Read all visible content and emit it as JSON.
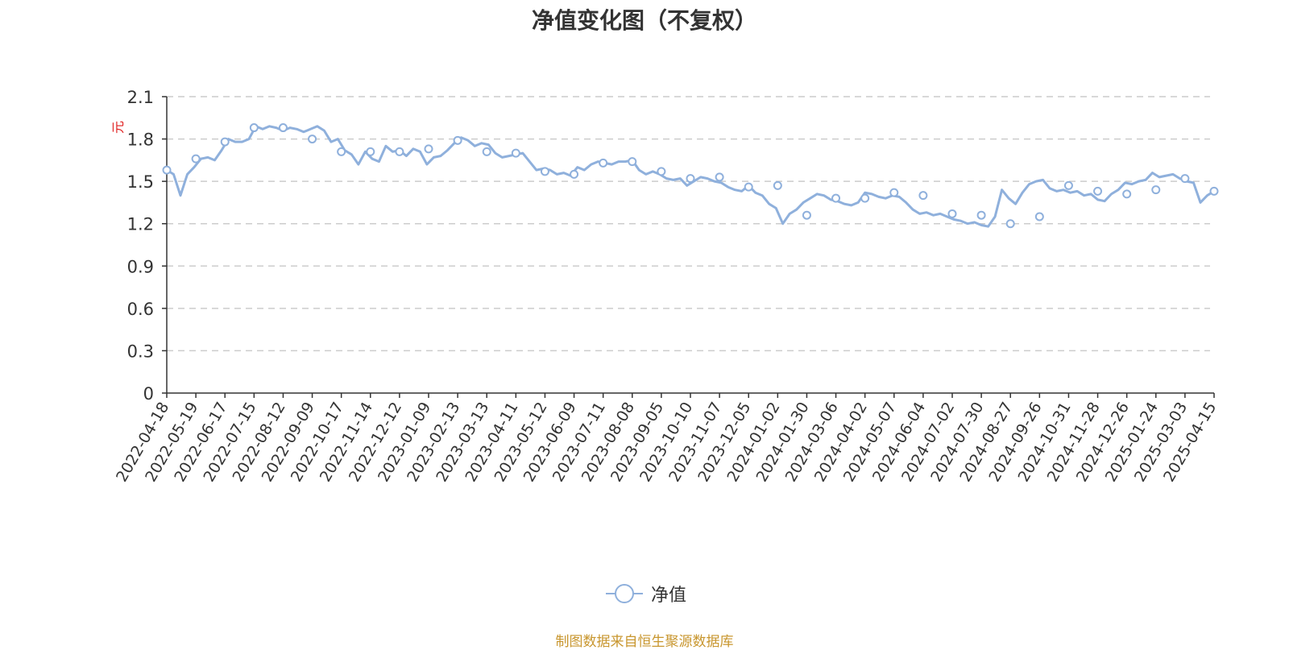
{
  "title": "净值变化图（不复权）",
  "unit": "元",
  "legend": {
    "label": "净值"
  },
  "source": "制图数据来自恒生聚源数据库",
  "colors": {
    "line": "#8fb0dc",
    "marker_fill": "#ffffff",
    "grid": "#cccccc",
    "unit": "#e02020",
    "source": "#c8962e"
  },
  "chart_data": {
    "type": "line",
    "title": "净值变化图（不复权）",
    "ylabel": "元",
    "ylim": [
      0,
      2.1
    ],
    "yticks": [
      0,
      0.3,
      0.6,
      0.9,
      1.2,
      1.5,
      1.8,
      2.1
    ],
    "grid": true,
    "legend_position": "bottom",
    "categories": [
      "2022-04-18",
      "2022-05-19",
      "2022-06-17",
      "2022-07-15",
      "2022-08-12",
      "2022-09-09",
      "2022-10-17",
      "2022-11-14",
      "2022-12-12",
      "2023-01-09",
      "2023-02-13",
      "2023-03-13",
      "2023-04-11",
      "2023-05-12",
      "2023-06-09",
      "2023-07-11",
      "2023-08-08",
      "2023-09-05",
      "2023-10-10",
      "2023-11-07",
      "2023-12-05",
      "2024-01-02",
      "2024-01-30",
      "2024-03-06",
      "2024-04-02",
      "2024-05-07",
      "2024-06-04",
      "2024-07-02",
      "2024-07-30",
      "2024-08-27",
      "2024-09-26",
      "2024-10-31",
      "2024-11-28",
      "2024-12-26",
      "2025-01-24",
      "2025-03-03",
      "2025-04-15"
    ],
    "series": [
      {
        "name": "净值",
        "values": [
          1.58,
          1.66,
          1.78,
          1.88,
          1.88,
          1.8,
          1.71,
          1.71,
          1.71,
          1.73,
          1.79,
          1.71,
          1.7,
          1.57,
          1.55,
          1.63,
          1.64,
          1.57,
          1.52,
          1.53,
          1.46,
          1.47,
          1.26,
          1.38,
          1.38,
          1.42,
          1.4,
          1.27,
          1.26,
          1.2,
          1.25,
          1.47,
          1.43,
          1.41,
          1.44,
          1.52,
          1.43
        ],
        "detail": [
          1.58,
          1.55,
          1.4,
          1.55,
          1.6,
          1.66,
          1.67,
          1.65,
          1.72,
          1.8,
          1.78,
          1.78,
          1.8,
          1.89,
          1.87,
          1.89,
          1.88,
          1.86,
          1.88,
          1.87,
          1.85,
          1.87,
          1.89,
          1.86,
          1.78,
          1.8,
          1.72,
          1.69,
          1.62,
          1.71,
          1.66,
          1.64,
          1.75,
          1.71,
          1.72,
          1.68,
          1.73,
          1.71,
          1.62,
          1.67,
          1.68,
          1.72,
          1.77,
          1.81,
          1.79,
          1.75,
          1.77,
          1.76,
          1.7,
          1.67,
          1.68,
          1.69,
          1.7,
          1.64,
          1.58,
          1.59,
          1.58,
          1.55,
          1.56,
          1.54,
          1.6,
          1.58,
          1.62,
          1.64,
          1.63,
          1.62,
          1.64,
          1.64,
          1.65,
          1.58,
          1.55,
          1.57,
          1.55,
          1.52,
          1.51,
          1.52,
          1.47,
          1.5,
          1.53,
          1.52,
          1.5,
          1.49,
          1.46,
          1.44,
          1.43,
          1.47,
          1.42,
          1.4,
          1.34,
          1.31,
          1.2,
          1.27,
          1.3,
          1.35,
          1.38,
          1.41,
          1.4,
          1.37,
          1.36,
          1.34,
          1.33,
          1.35,
          1.42,
          1.41,
          1.39,
          1.38,
          1.4,
          1.39,
          1.35,
          1.3,
          1.27,
          1.28,
          1.26,
          1.27,
          1.25,
          1.23,
          1.22,
          1.2,
          1.21,
          1.19,
          1.18,
          1.25,
          1.44,
          1.38,
          1.34,
          1.42,
          1.48,
          1.5,
          1.51,
          1.45,
          1.43,
          1.44,
          1.42,
          1.43,
          1.4,
          1.41,
          1.37,
          1.36,
          1.41,
          1.44,
          1.49,
          1.48,
          1.5,
          1.51,
          1.56,
          1.53,
          1.54,
          1.55,
          1.52,
          1.5,
          1.49,
          1.35,
          1.4,
          1.43
        ]
      }
    ]
  }
}
